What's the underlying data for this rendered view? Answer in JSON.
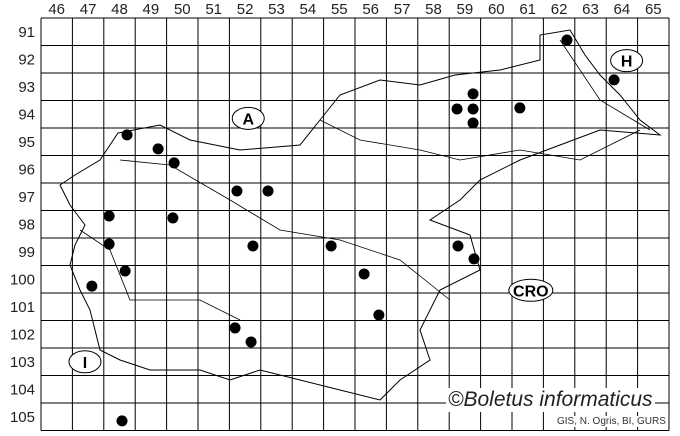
{
  "map": {
    "columns": [
      "46",
      "47",
      "48",
      "49",
      "50",
      "51",
      "52",
      "53",
      "54",
      "55",
      "56",
      "57",
      "58",
      "59",
      "60",
      "61",
      "62",
      "63",
      "64",
      "65"
    ],
    "rows": [
      "91",
      "92",
      "93",
      "94",
      "95",
      "96",
      "97",
      "98",
      "99",
      "100",
      "101",
      "102",
      "103",
      "104",
      "105"
    ],
    "country_labels": [
      {
        "text": "A",
        "x": 52.6,
        "y": 94.65
      },
      {
        "text": "H",
        "x": 64.65,
        "y": 92.55
      },
      {
        "text": "CRO",
        "x": 61.6,
        "y": 100.9
      },
      {
        "text": "I",
        "x": 47.4,
        "y": 103.5
      }
    ],
    "records": [
      {
        "x": 62.75,
        "y": 91.8
      },
      {
        "x": 64.25,
        "y": 93.25
      },
      {
        "x": 59.76,
        "y": 93.76
      },
      {
        "x": 59.25,
        "y": 94.31
      },
      {
        "x": 59.76,
        "y": 94.31
      },
      {
        "x": 61.25,
        "y": 94.27
      },
      {
        "x": 59.76,
        "y": 94.82
      },
      {
        "x": 48.74,
        "y": 95.25
      },
      {
        "x": 49.73,
        "y": 95.76
      },
      {
        "x": 50.24,
        "y": 96.27
      },
      {
        "x": 52.24,
        "y": 97.29
      },
      {
        "x": 53.23,
        "y": 97.29
      },
      {
        "x": 48.17,
        "y": 98.2
      },
      {
        "x": 50.2,
        "y": 98.27
      },
      {
        "x": 48.17,
        "y": 99.22
      },
      {
        "x": 52.75,
        "y": 99.29
      },
      {
        "x": 55.24,
        "y": 99.29
      },
      {
        "x": 59.28,
        "y": 99.29
      },
      {
        "x": 59.79,
        "y": 99.76
      },
      {
        "x": 48.68,
        "y": 100.2
      },
      {
        "x": 56.29,
        "y": 100.31
      },
      {
        "x": 47.62,
        "y": 100.75
      },
      {
        "x": 56.76,
        "y": 101.8
      },
      {
        "x": 52.18,
        "y": 102.27
      },
      {
        "x": 52.69,
        "y": 102.78
      },
      {
        "x": 48.58,
        "y": 105.65
      }
    ],
    "dot_color": "#000000"
  },
  "copyright": "©Boletus informaticus",
  "credit": "GIS, N. Ogris, BI, GURS"
}
